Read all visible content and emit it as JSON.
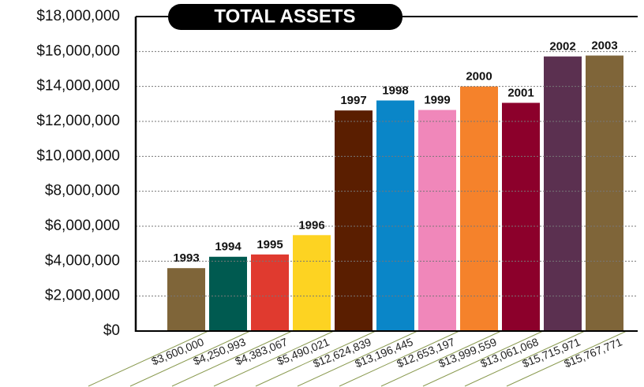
{
  "chart_data": {
    "type": "bar",
    "title": "TOTAL ASSETS",
    "categories": [
      "1993",
      "1994",
      "1995",
      "1996",
      "1997",
      "1998",
      "1999",
      "2000",
      "2001",
      "2002",
      "2003"
    ],
    "values": [
      3600000,
      4250993,
      4383067,
      5490021,
      12624839,
      13196445,
      12653197,
      13999559,
      13061068,
      15715971,
      15767771
    ],
    "value_labels": [
      "$3,600,000",
      "$4,250,993",
      "$4,383,067",
      "$5,490,021",
      "$12,624,839",
      "$13,196,445",
      "$12,653,197",
      "$13,999,559",
      "$13,061,068",
      "$15,715,971",
      "$15,767,771"
    ],
    "colors": [
      "#7f6539",
      "#005a50",
      "#e03a2f",
      "#fdd322",
      "#5a1e00",
      "#0a86c8",
      "#f087ba",
      "#f5822b",
      "#8c002b",
      "#5b3050",
      "#7f6539"
    ],
    "ylim": [
      0,
      18000000
    ],
    "yticks": [
      {
        "value": 0,
        "label": "$0"
      },
      {
        "value": 2000000,
        "label": "$2,000,000"
      },
      {
        "value": 4000000,
        "label": "$4,000,000"
      },
      {
        "value": 6000000,
        "label": "$6,000,000"
      },
      {
        "value": 8000000,
        "label": "$8,000,000"
      },
      {
        "value": 10000000,
        "label": "$10,000,000"
      },
      {
        "value": 12000000,
        "label": "$12,000,000"
      },
      {
        "value": 14000000,
        "label": "$14,000,000"
      },
      {
        "value": 16000000,
        "label": "$16,000,000"
      },
      {
        "value": 18000000,
        "label": "$18,000,000"
      }
    ],
    "grid": true
  }
}
